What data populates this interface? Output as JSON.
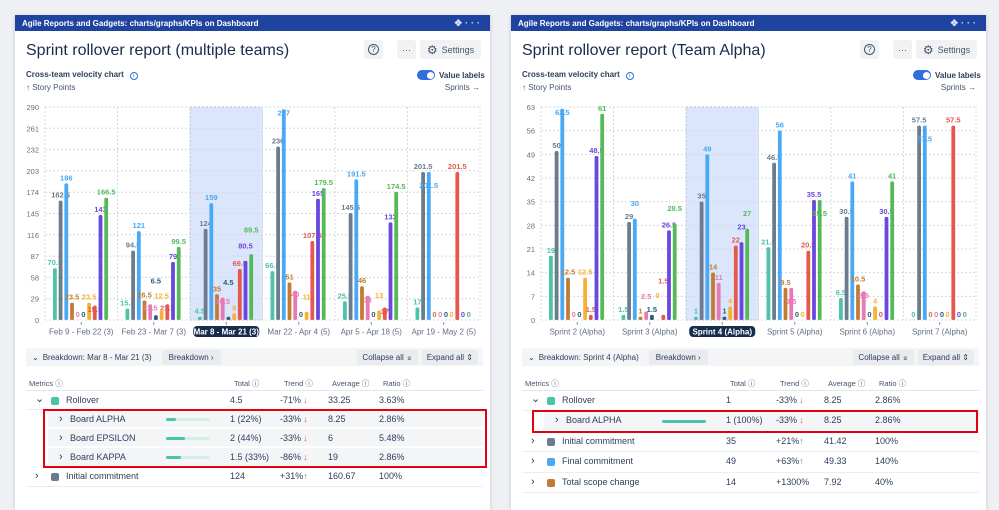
{
  "header_bar_title": "Agile Reports and Gadgets: charts/graphs/KPIs on Dashboard",
  "header_icons": [
    "move-icon",
    "more-icon"
  ],
  "colors": {
    "accent": "#2f6fe0",
    "header_bar": "#1f44a0",
    "highlight": "#e3000f",
    "trend_down": "#e5584f",
    "trend_up": "#3aa76d"
  },
  "panels": [
    {
      "title": "Sprint rollover report (multiple teams)",
      "settings_label": "Settings",
      "more_label": "···",
      "help_label": "?",
      "chart_subtitle": "Cross-team velocity chart",
      "value_labels_label": "Value labels",
      "value_labels_on": true,
      "y_axis_label": "↑ Story Points",
      "x_axis_label": "Sprints →",
      "breakdown": {
        "label": "Breakdown: Mar 8 - Mar 21 (3)",
        "button": "Breakdown ›",
        "collapse": "Collapse all ⌅",
        "expand": "Expand all ⇕"
      },
      "columns": {
        "metrics": "Metrics ⓘ",
        "total": "Total ⓘ",
        "trend": "Trend ⓘ",
        "average": "Average ⓘ",
        "ratio": "Ratio ⓘ"
      },
      "rows": [
        {
          "level": 0,
          "expanded": true,
          "name": "Rollover",
          "color": "#4bc4a8",
          "total": "4.5",
          "trend": "-71%",
          "trend_dir": "down",
          "average": "33.25",
          "ratio": "3.63%"
        },
        {
          "level": 1,
          "name": "Board ALPHA",
          "share": 0.22,
          "total": "1 (22%)",
          "trend": "-33%",
          "trend_dir": "down",
          "average": "8.25",
          "ratio": "2.86%",
          "highlighted": true
        },
        {
          "level": 1,
          "name": "Board EPSILON",
          "share": 0.44,
          "total": "2 (44%)",
          "trend": "-33%",
          "trend_dir": "down",
          "average": "6",
          "ratio": "5.48%",
          "highlighted": true
        },
        {
          "level": 1,
          "name": "Board KAPPA",
          "share": 0.33,
          "total": "1.5 (33%)",
          "trend": "-86%",
          "trend_dir": "down",
          "average": "19",
          "ratio": "2.86%",
          "highlighted": true
        },
        {
          "level": 0,
          "expanded": false,
          "name": "Initial commitment",
          "color": "#6b7c8f",
          "total": "124",
          "trend": "+31%",
          "trend_dir": "up",
          "average": "160.67",
          "ratio": "100%"
        }
      ]
    },
    {
      "title": "Sprint rollover report (Team Alpha)",
      "settings_label": "Settings",
      "more_label": "···",
      "help_label": "?",
      "chart_subtitle": "Cross-team velocity chart",
      "value_labels_label": "Value labels",
      "value_labels_on": true,
      "y_axis_label": "↑ Story Points",
      "x_axis_label": "Sprints →",
      "breakdown": {
        "label": "Breakdown: Sprint 4 (Alpha)",
        "button": "Breakdown ›",
        "collapse": "Collapse all ⌅",
        "expand": "Expand all ⇕"
      },
      "columns": {
        "metrics": "Metrics ⓘ",
        "total": "Total ⓘ",
        "trend": "Trend ⓘ",
        "average": "Average ⓘ",
        "ratio": "Ratio ⓘ"
      },
      "rows": [
        {
          "level": 0,
          "expanded": true,
          "name": "Rollover",
          "color": "#4bc4a8",
          "total": "1",
          "trend": "-33%",
          "trend_dir": "down",
          "average": "8.25",
          "ratio": "2.86%"
        },
        {
          "level": 1,
          "name": "Board ALPHA",
          "share": 1.0,
          "total": "1 (100%)",
          "trend": "-33%",
          "trend_dir": "down",
          "average": "8.25",
          "ratio": "2.86%",
          "highlighted": true
        },
        {
          "level": 0,
          "expanded": false,
          "name": "Initial commitment",
          "color": "#6b7c8f",
          "total": "35",
          "trend": "+21%",
          "trend_dir": "up",
          "average": "41.42",
          "ratio": "100%"
        },
        {
          "level": 0,
          "expanded": false,
          "name": "Final commitment",
          "color": "#4aa8f5",
          "total": "49",
          "trend": "+63%",
          "trend_dir": "up",
          "average": "49.33",
          "ratio": "140%"
        },
        {
          "level": 0,
          "expanded": false,
          "name": "Total scope change",
          "color": "#c27c32",
          "total": "14",
          "trend": "+1300%",
          "trend_dir": "",
          "average": "7.92",
          "ratio": "40%"
        }
      ]
    }
  ],
  "chart_data": [
    {
      "type": "bar",
      "ylabel": "Story Points",
      "xlabel": "Sprints",
      "ylim": [
        0,
        290
      ],
      "y_ticks": [
        0,
        29,
        58,
        87,
        116,
        145,
        174,
        203,
        232,
        261,
        290
      ],
      "grid": true,
      "selected_category": "Mar 8 - Mar 21 (3)",
      "categories": [
        "Feb 9 - Feb 22 (3)",
        "Feb 23 - Mar 7 (3)",
        "Mar 8 - Mar 21 (3)",
        "Mar 22 - Apr 4 (5)",
        "Apr 5 - Apr 18 (5)",
        "Apr 19 - May 2 (5)"
      ],
      "series": [
        {
          "color": "#4bc4a8",
          "values": [
            70.5,
            15.5,
            4.5,
            66.5,
            25.5,
            17
          ]
        },
        {
          "color": "#6b7c8f",
          "values": [
            162.5,
            94.5,
            124,
            236,
            145.5,
            201.5
          ]
        },
        {
          "color": "#4aa8f5",
          "values": [
            186,
            121,
            159,
            287,
            191.5,
            201.5
          ]
        },
        {
          "color": "#c27c32",
          "values": [
            23.5,
            26.5,
            35,
            51,
            46,
            0
          ]
        },
        {
          "color": "#e879b3",
          "values": [
            0,
            21.5,
            30.5,
            40,
            33,
            0
          ]
        },
        {
          "color": "#2d5c7f",
          "values": [
            0,
            6.5,
            4.5,
            0,
            0,
            0
          ]
        },
        {
          "color": "#f5b235",
          "values": [
            23.5,
            12.5,
            9,
            11,
            13,
            0
          ]
        },
        {
          "color": "#e5584f",
          "values": [
            19.5,
            21.5,
            69.5,
            107.5,
            17,
            201.5
          ]
        },
        {
          "color": "#6a48e0",
          "values": [
            143,
            79,
            80.5,
            165,
            133,
            0
          ]
        },
        {
          "color": "#55b95a",
          "values": [
            166.5,
            99.5,
            89.5,
            179.5,
            174.5,
            0
          ]
        }
      ]
    },
    {
      "type": "bar",
      "ylabel": "Story Points",
      "xlabel": "Sprints",
      "ylim": [
        0,
        63
      ],
      "y_ticks": [
        0,
        7,
        14,
        21,
        28,
        35,
        42,
        49,
        56,
        63
      ],
      "grid": true,
      "selected_category": "Sprint 4 (Alpha)",
      "categories": [
        "Sprint 2 (Alpha)",
        "Sprint 3 (Alpha)",
        "Sprint 4 (Alpha)",
        "Sprint 5 (Alpha)",
        "Sprint 6 (Alpha)",
        "Sprint 7 (Alpha)"
      ],
      "series": [
        {
          "color": "#4bc4a8",
          "values": [
            19,
            1.5,
            1,
            21.5,
            6.5,
            0
          ]
        },
        {
          "color": "#6b7c8f",
          "values": [
            50,
            29,
            35,
            46.5,
            30.5,
            57.5
          ]
        },
        {
          "color": "#4aa8f5",
          "values": [
            62.5,
            30,
            49,
            56,
            41,
            57.5
          ]
        },
        {
          "color": "#c27c32",
          "values": [
            12.5,
            1,
            14,
            9.5,
            10.5,
            0
          ]
        },
        {
          "color": "#e879b3",
          "values": [
            0,
            2.5,
            11,
            9.5,
            8.5,
            0
          ]
        },
        {
          "color": "#2d5c7f",
          "values": [
            0,
            1.5,
            1,
            0,
            0,
            0
          ]
        },
        {
          "color": "#f5b235",
          "values": [
            12.5,
            0,
            4,
            0,
            4,
            0
          ]
        },
        {
          "color": "#e5584f",
          "values": [
            1.5,
            1.5,
            22,
            20.5,
            0,
            57.5
          ]
        },
        {
          "color": "#6a48e0",
          "values": [
            48.5,
            26.5,
            23,
            35.5,
            30.5,
            0
          ]
        },
        {
          "color": "#55b95a",
          "values": [
            61,
            28.5,
            27,
            35.5,
            41,
            0
          ]
        }
      ]
    }
  ]
}
